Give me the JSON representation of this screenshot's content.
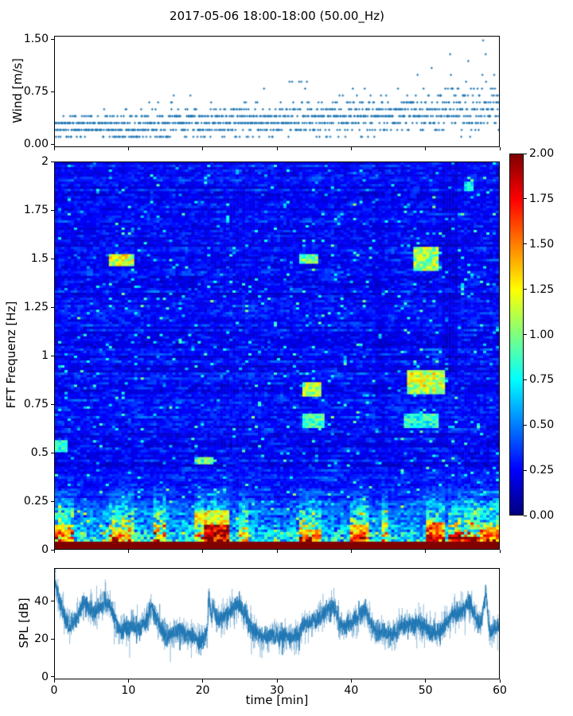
{
  "figure": {
    "title": "2017-05-06 18:00-18:00 (50.00_Hz)",
    "background": "#ffffff",
    "spine_color": "#000000",
    "text_color": "#000000",
    "series_blue": "#1f77b4"
  },
  "chart_data": [
    {
      "id": "wind",
      "type": "scatter",
      "ylabel": "Wind [m/s]",
      "marker": "plus",
      "marker_color": "#1f77b4",
      "xlim": [
        0,
        60
      ],
      "ylim": [
        -0.045,
        1.55
      ],
      "yticks": [
        {
          "v": 0,
          "label": "0.00"
        },
        {
          "v": 0.75,
          "label": "0.75"
        },
        {
          "v": 1.5,
          "label": "1.50"
        }
      ],
      "xticks_unlabeled": [
        0,
        10,
        20,
        30,
        40,
        50,
        60
      ],
      "quantization_mps": 0.1,
      "sample_dt_min": 0.05,
      "clamp": [
        0.1,
        1.5
      ],
      "seed": 97,
      "segments": [
        {
          "t0": 0,
          "t1": 3,
          "mean": 0.24,
          "sigma": 0.08,
          "outlier_p": 0.0,
          "outlier_max": 0.5
        },
        {
          "t0": 3,
          "t1": 8,
          "mean": 0.26,
          "sigma": 0.09,
          "outlier_p": 0.004,
          "outlier_max": 0.6
        },
        {
          "t0": 8,
          "t1": 15,
          "mean": 0.25,
          "sigma": 0.1,
          "outlier_p": 0.006,
          "outlier_max": 0.6
        },
        {
          "t0": 15,
          "t1": 21,
          "mean": 0.3,
          "sigma": 0.11,
          "outlier_p": 0.02,
          "outlier_max": 0.8
        },
        {
          "t0": 21,
          "t1": 27,
          "mean": 0.33,
          "sigma": 0.11,
          "outlier_p": 0.02,
          "outlier_max": 0.8
        },
        {
          "t0": 27,
          "t1": 33,
          "mean": 0.34,
          "sigma": 0.12,
          "outlier_p": 0.025,
          "outlier_max": 0.85
        },
        {
          "t0": 33,
          "t1": 40,
          "mean": 0.38,
          "sigma": 0.13,
          "outlier_p": 0.03,
          "outlier_max": 0.9
        },
        {
          "t0": 40,
          "t1": 46,
          "mean": 0.4,
          "sigma": 0.13,
          "outlier_p": 0.04,
          "outlier_max": 1.0
        },
        {
          "t0": 46,
          "t1": 52,
          "mean": 0.45,
          "sigma": 0.15,
          "outlier_p": 0.05,
          "outlier_max": 1.2
        },
        {
          "t0": 52,
          "t1": 57,
          "mean": 0.5,
          "sigma": 0.17,
          "outlier_p": 0.06,
          "outlier_max": 1.5
        },
        {
          "t0": 57,
          "t1": 60,
          "mean": 0.55,
          "sigma": 0.19,
          "outlier_p": 0.08,
          "outlier_max": 1.5
        }
      ]
    },
    {
      "id": "spectrogram",
      "type": "heatmap",
      "ylabel": "FFT Frequenz [Hz]",
      "xlim": [
        0,
        60
      ],
      "ylim": [
        0,
        2
      ],
      "vmin": 0,
      "vmax": 2,
      "colormap": "jet",
      "yticks": [
        {
          "v": 0,
          "label": "0"
        },
        {
          "v": 0.25,
          "label": "0.25"
        },
        {
          "v": 0.5,
          "label": "0.5"
        },
        {
          "v": 0.75,
          "label": "0.75"
        },
        {
          "v": 1,
          "label": "1"
        },
        {
          "v": 1.25,
          "label": "1.25"
        },
        {
          "v": 1.5,
          "label": "1.5"
        },
        {
          "v": 1.75,
          "label": "1.75"
        },
        {
          "v": 2,
          "label": "2"
        }
      ],
      "xticks_unlabeled": [
        0,
        10,
        20,
        30,
        40,
        50,
        60
      ],
      "grid": {
        "cols": 140,
        "rows": 160
      },
      "seed": 1337,
      "base": {
        "row_base_min": 0.1,
        "row_base_rand": 0.14,
        "temporal_corr": 0.62,
        "noise_amp": 0.3,
        "bright_p": 0.035,
        "bright_add": 0.45
      },
      "lowfreq": {
        "f_cut": 0.42,
        "gain": 1.1,
        "floor_f": 0.035,
        "floor_v": 2.0
      },
      "hot_windows": [
        [
          0,
          2.5
        ],
        [
          7.5,
          10.5
        ],
        [
          13.5,
          15
        ],
        [
          19,
          23.5
        ],
        [
          25,
          26.2
        ],
        [
          33,
          36
        ],
        [
          40,
          42.5
        ],
        [
          44,
          45.2
        ],
        [
          50,
          52.5
        ],
        [
          53,
          57
        ],
        [
          57,
          60
        ]
      ],
      "hot_gain": 1.7,
      "cold_gain": 0.75,
      "features": [
        {
          "t": [
            7.5,
            10.5
          ],
          "f": [
            1.46,
            1.53
          ],
          "v": 1.15
        },
        {
          "t": [
            33,
            35.5
          ],
          "f": [
            1.47,
            1.53
          ],
          "v": 1.0
        },
        {
          "t": [
            48.5,
            52
          ],
          "f": [
            1.44,
            1.56
          ],
          "v": 1.05
        },
        {
          "t": [
            55.3,
            56.6
          ],
          "f": [
            1.85,
            1.9
          ],
          "v": 0.75
        },
        {
          "t": [
            33.5,
            36.2
          ],
          "f": [
            0.79,
            0.86
          ],
          "v": 1.05
        },
        {
          "t": [
            33.5,
            36.6
          ],
          "f": [
            0.62,
            0.7
          ],
          "v": 0.85
        },
        {
          "t": [
            47.5,
            52.5
          ],
          "f": [
            0.8,
            0.93
          ],
          "v": 1.15
        },
        {
          "t": [
            47.2,
            52
          ],
          "f": [
            0.63,
            0.7
          ],
          "v": 0.8
        },
        {
          "t": [
            0.2,
            1.6
          ],
          "f": [
            0.5,
            0.56
          ],
          "v": 0.85
        },
        {
          "t": [
            19,
            21.5
          ],
          "f": [
            0.44,
            0.48
          ],
          "v": 0.9
        },
        {
          "t": [
            20,
            23.5
          ],
          "f": [
            0.02,
            0.13
          ],
          "v": 1.95
        },
        {
          "t": [
            19,
            23.5
          ],
          "f": [
            0.13,
            0.2
          ],
          "v": 1.2
        },
        {
          "t": [
            0,
            2.2
          ],
          "f": [
            0.03,
            0.12
          ],
          "v": 1.25
        },
        {
          "t": [
            8,
            10.3
          ],
          "f": [
            0.03,
            0.1
          ],
          "v": 1.3
        },
        {
          "t": [
            33.5,
            35.8
          ],
          "f": [
            0.03,
            0.1
          ],
          "v": 1.3
        },
        {
          "t": [
            40,
            42.6
          ],
          "f": [
            0.03,
            0.12
          ],
          "v": 1.45
        },
        {
          "t": [
            50,
            52.6
          ],
          "f": [
            0.04,
            0.14
          ],
          "v": 1.55
        },
        {
          "t": [
            53,
            57.5
          ],
          "f": [
            0.02,
            0.06
          ],
          "v": 1.9
        },
        {
          "t": [
            57.5,
            60
          ],
          "f": [
            0.02,
            0.1
          ],
          "v": 1.45
        },
        {
          "t": [
            52.4,
            54.6
          ],
          "f": [
            0.9,
            2.0
          ],
          "v": 0.8,
          "mode": "dim"
        },
        {
          "t": [
            43.2,
            44.4
          ],
          "f": [
            0.5,
            2.0
          ],
          "v": 0.85,
          "mode": "dim"
        }
      ],
      "colorbar": {
        "vmin": 0,
        "vmax": 2,
        "ticks": [
          {
            "v": 0,
            "label": "0.00"
          },
          {
            "v": 0.25,
            "label": "0.25"
          },
          {
            "v": 0.5,
            "label": "0.50"
          },
          {
            "v": 0.75,
            "label": "0.75"
          },
          {
            "v": 1,
            "label": "1.00"
          },
          {
            "v": 1.25,
            "label": "1.25"
          },
          {
            "v": 1.5,
            "label": "1.50"
          },
          {
            "v": 1.75,
            "label": "1.75"
          },
          {
            "v": 2,
            "label": "2.00"
          }
        ]
      }
    },
    {
      "id": "spl",
      "type": "line",
      "ylabel": "SPL [dB]",
      "xlabel": "time [min]",
      "line_color": "#1f77b4",
      "xlim": [
        0,
        60
      ],
      "ylim": [
        -1.3,
        57.5
      ],
      "yticks": [
        {
          "v": 0,
          "label": "0"
        },
        {
          "v": 20,
          "label": "20"
        },
        {
          "v": 40,
          "label": "40"
        }
      ],
      "xticks": [
        {
          "v": 0,
          "label": "0"
        },
        {
          "v": 10,
          "label": "10"
        },
        {
          "v": 20,
          "label": "20"
        },
        {
          "v": 30,
          "label": "30"
        },
        {
          "v": 40,
          "label": "40"
        },
        {
          "v": 50,
          "label": "50"
        },
        {
          "v": 60,
          "label": "60"
        }
      ],
      "seed": 5,
      "sample_dt_min": 0.02,
      "noise_sigma_db": 2.2,
      "fuzz_sigma_db": 4.0,
      "neg_spike_p": 0.02,
      "neg_spike_db": 9,
      "pos_spike_p": 0.008,
      "pos_spike_db": 6,
      "keypoints": [
        [
          0,
          50
        ],
        [
          0.4,
          44
        ],
        [
          1,
          36
        ],
        [
          1.6,
          30
        ],
        [
          2,
          26
        ],
        [
          2.6,
          28
        ],
        [
          3.2,
          34
        ],
        [
          4,
          40
        ],
        [
          4.6,
          36
        ],
        [
          5.2,
          34
        ],
        [
          6,
          36
        ],
        [
          6.8,
          40
        ],
        [
          7.4,
          38
        ],
        [
          8.2,
          30
        ],
        [
          9,
          24
        ],
        [
          9.6,
          26
        ],
        [
          10.5,
          27
        ],
        [
          11.5,
          26
        ],
        [
          12.3,
          29
        ],
        [
          13,
          38
        ],
        [
          13.6,
          32
        ],
        [
          14.3,
          26
        ],
        [
          15,
          21
        ],
        [
          16,
          23
        ],
        [
          17,
          25
        ],
        [
          17.8,
          22
        ],
        [
          18.6,
          21
        ],
        [
          19.4,
          18
        ],
        [
          20,
          20
        ],
        [
          20.6,
          23
        ],
        [
          20.8,
          44
        ],
        [
          21.1,
          32
        ],
        [
          21.4,
          38
        ],
        [
          21.8,
          30
        ],
        [
          22.3,
          31
        ],
        [
          23,
          33
        ],
        [
          23.8,
          35
        ],
        [
          24.5,
          38
        ],
        [
          25,
          37
        ],
        [
          25.7,
          33
        ],
        [
          26.3,
          27
        ],
        [
          27,
          23
        ],
        [
          28,
          21
        ],
        [
          29,
          22
        ],
        [
          30,
          21
        ],
        [
          31,
          22
        ],
        [
          32,
          21
        ],
        [
          33,
          22
        ],
        [
          33.4,
          27
        ],
        [
          34.2,
          28
        ],
        [
          35,
          30
        ],
        [
          36,
          32
        ],
        [
          36.8,
          35
        ],
        [
          37.5,
          38
        ],
        [
          38.2,
          31
        ],
        [
          39,
          26
        ],
        [
          39.8,
          28
        ],
        [
          40.6,
          31
        ],
        [
          41.4,
          34
        ],
        [
          41.9,
          36
        ],
        [
          42.6,
          29
        ],
        [
          43.4,
          23
        ],
        [
          44.2,
          24
        ],
        [
          45,
          23
        ],
        [
          46,
          23
        ],
        [
          46.8,
          27
        ],
        [
          48,
          28
        ],
        [
          49,
          28
        ],
        [
          50,
          27
        ],
        [
          50.8,
          24
        ],
        [
          51.6,
          23
        ],
        [
          52.4,
          26
        ],
        [
          53.2,
          30
        ],
        [
          54,
          34
        ],
        [
          54.6,
          33
        ],
        [
          55.4,
          37
        ],
        [
          56,
          39
        ],
        [
          56.6,
          34
        ],
        [
          57.2,
          28
        ],
        [
          57.7,
          30
        ],
        [
          58.2,
          46
        ],
        [
          58.5,
          32
        ],
        [
          58.8,
          23
        ],
        [
          59.3,
          25
        ],
        [
          60,
          27
        ]
      ]
    }
  ]
}
